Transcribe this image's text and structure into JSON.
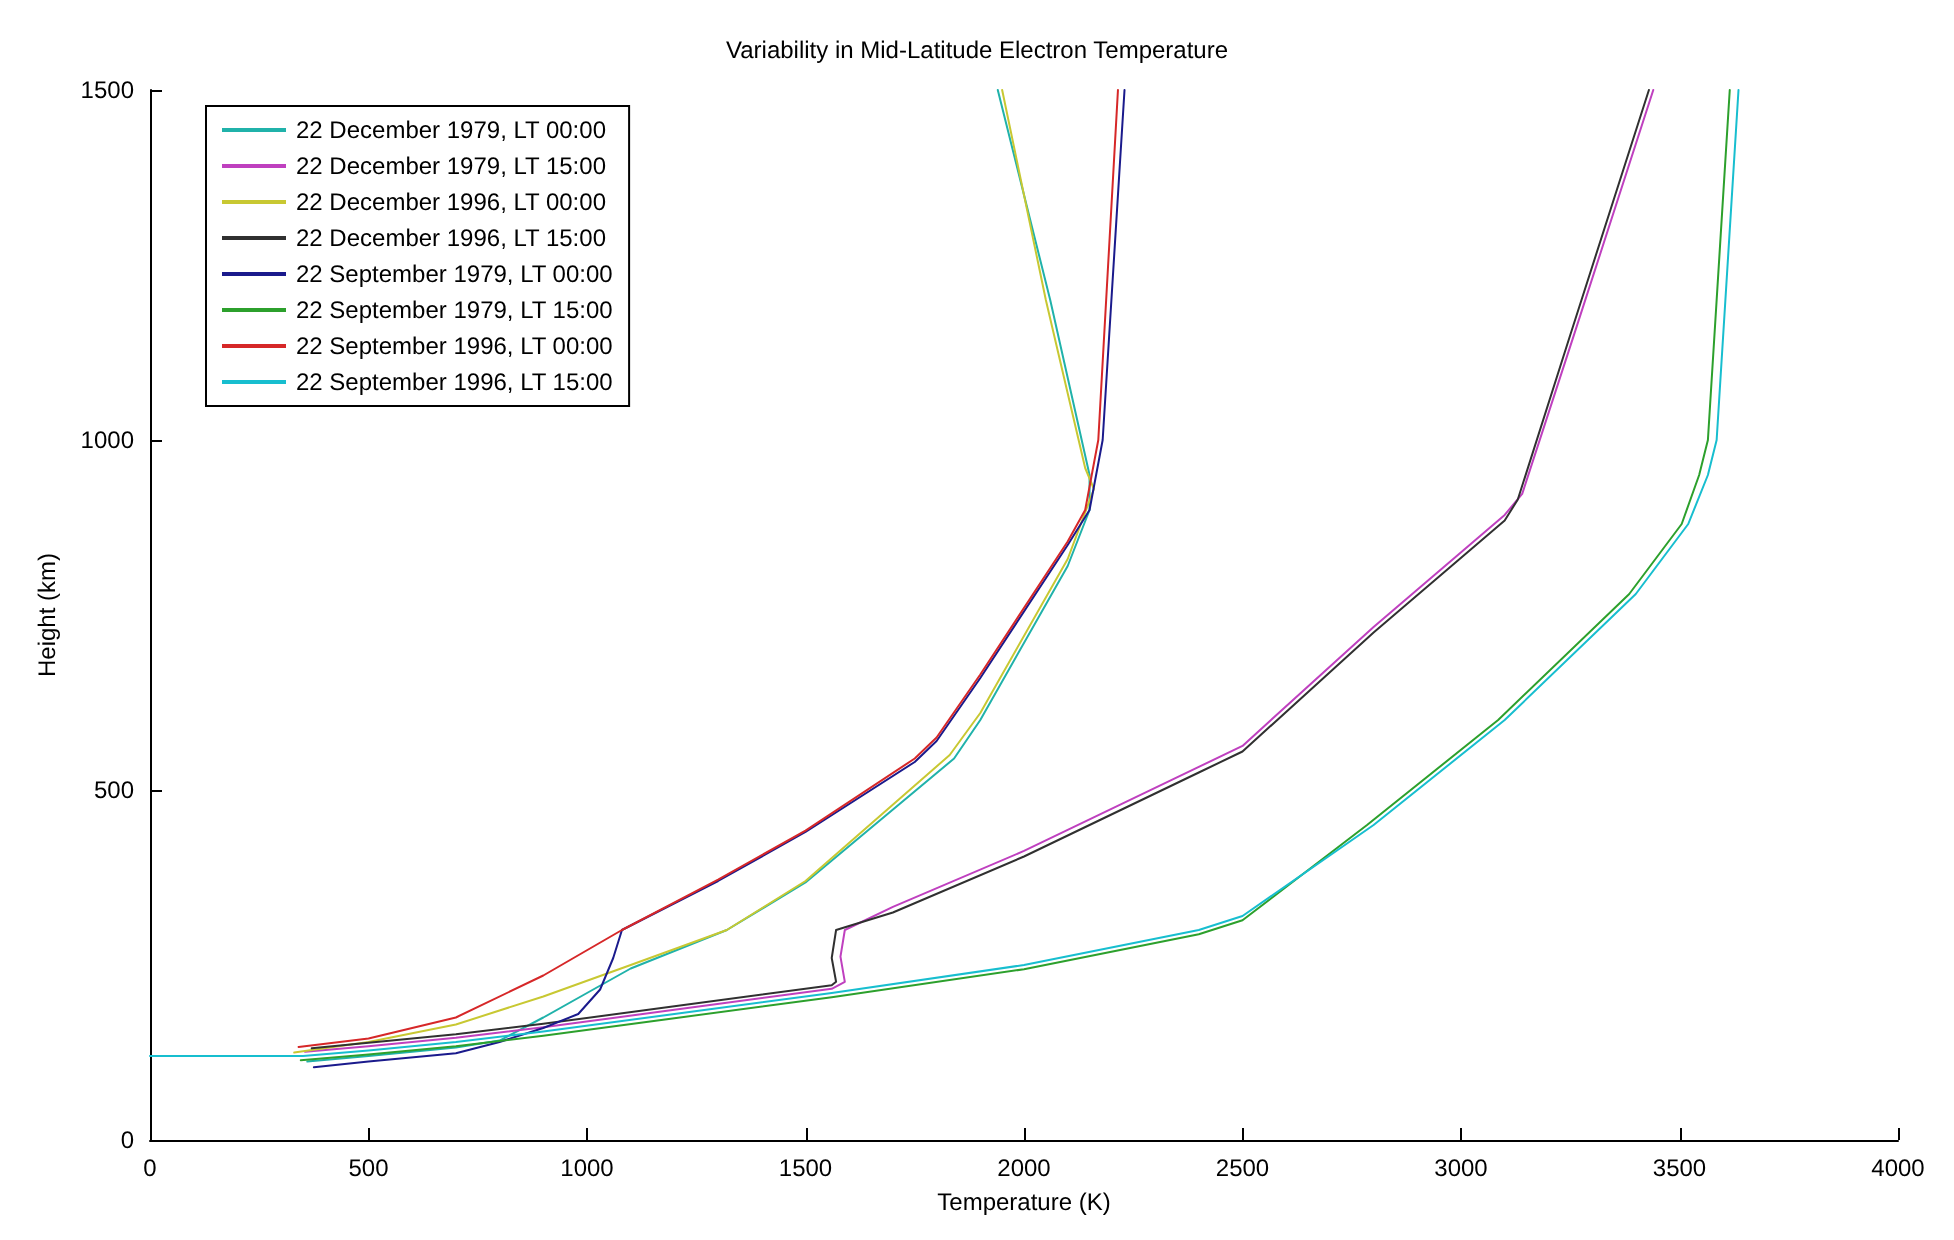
{
  "chart_data": {
    "type": "line",
    "title": "Variability in Mid-Latitude Electron Temperature",
    "xlabel": "Temperature (K)",
    "ylabel": "Height (km)",
    "xlim": [
      0,
      4000
    ],
    "xticks": [
      0,
      500,
      1000,
      1500,
      2000,
      2500,
      3000,
      3500,
      4000
    ],
    "ylim": [
      0,
      1500
    ],
    "yticks": [
      0,
      500,
      1000,
      1500
    ],
    "grid": false,
    "legend": "top left",
    "marker": "none",
    "line_style": "solid",
    "series": [
      {
        "name": "22 December 1979, LT 00:00",
        "color": "#20b2aa",
        "x": [
          360,
          500,
          700,
          800,
          900,
          1000,
          1100,
          1320,
          1500,
          1840,
          1900,
          2100,
          2150,
          2150,
          2060,
          1940
        ],
        "values": [
          112,
          120,
          132,
          142,
          175,
          210,
          245,
          300,
          368,
          545,
          600,
          820,
          900,
          950,
          1200,
          1500
        ]
      },
      {
        "name": "22 December 1979, LT 15:00",
        "color": "#bf40bf",
        "x": [
          355,
          500,
          700,
          900,
          1200,
          1560,
          1590,
          1580,
          1590,
          1700,
          2000,
          2400,
          2500,
          2800,
          3100,
          3140,
          3260,
          3440
        ],
        "values": [
          126,
          134,
          146,
          161,
          186,
          216,
          226,
          262,
          300,
          333,
          413,
          533,
          563,
          733,
          893,
          923,
          1153,
          1500
        ]
      },
      {
        "name": "22 December 1996, LT 00:00",
        "color": "#c8c832",
        "x": [
          330,
          500,
          700,
          900,
          1100,
          1320,
          1500,
          1830,
          1900,
          2100,
          2160,
          2140,
          2050,
          1950
        ],
        "values": [
          125,
          140,
          165,
          205,
          250,
          300,
          370,
          550,
          610,
          830,
          930,
          960,
          1200,
          1500
        ]
      },
      {
        "name": "22 December 1996, LT 15:00",
        "color": "#303030",
        "x": [
          370,
          500,
          700,
          900,
          1200,
          1560,
          1570,
          1560,
          1570,
          1700,
          2000,
          2400,
          2500,
          2800,
          3100,
          3130,
          3250,
          3430
        ],
        "values": [
          131,
          139,
          151,
          166,
          191,
          221,
          226,
          260,
          300,
          325,
          405,
          525,
          555,
          725,
          885,
          915,
          1150,
          1500
        ]
      },
      {
        "name": "22 September 1979, LT 00:00",
        "color": "#1a1a8c",
        "x": [
          375,
          500,
          700,
          800,
          900,
          980,
          1030,
          1060,
          1080,
          1300,
          1500,
          1750,
          1800,
          1900,
          2100,
          2150,
          2180,
          2230
        ],
        "values": [
          104,
          112,
          124,
          140,
          160,
          180,
          215,
          260,
          300,
          370,
          440,
          540,
          570,
          660,
          850,
          900,
          1000,
          1500
        ]
      },
      {
        "name": "22 September 1979, LT 15:00",
        "color": "#2ca02c",
        "x": [
          345,
          500,
          700,
          900,
          1200,
          1560,
          2000,
          2400,
          2500,
          2785,
          3085,
          3385,
          3505,
          3545,
          3565,
          3585,
          3615
        ],
        "values": [
          114,
          122,
          134,
          149,
          174,
          204,
          244,
          294,
          314,
          450,
          600,
          780,
          880,
          950,
          1000,
          1200,
          1500
        ]
      },
      {
        "name": "22 September 1996, LT 00:00",
        "color": "#d62728",
        "x": [
          340,
          500,
          700,
          900,
          1080,
          1300,
          1500,
          1750,
          1800,
          1900,
          2100,
          2140,
          2170,
          2215
        ],
        "values": [
          133,
          145,
          175,
          235,
          300,
          372,
          442,
          545,
          575,
          665,
          855,
          900,
          1000,
          1500
        ]
      },
      {
        "name": "22 September 1996, LT 15:00",
        "color": "#17becf",
        "x": [
          0,
          350,
          500,
          700,
          900,
          1200,
          1560,
          2000,
          2400,
          2500,
          2800,
          3100,
          3400,
          3520,
          3565,
          3585,
          3605,
          3635
        ],
        "values": [
          120,
          120,
          128,
          140,
          155,
          180,
          210,
          250,
          300,
          320,
          450,
          600,
          780,
          880,
          950,
          1000,
          1200,
          1500
        ]
      }
    ]
  }
}
